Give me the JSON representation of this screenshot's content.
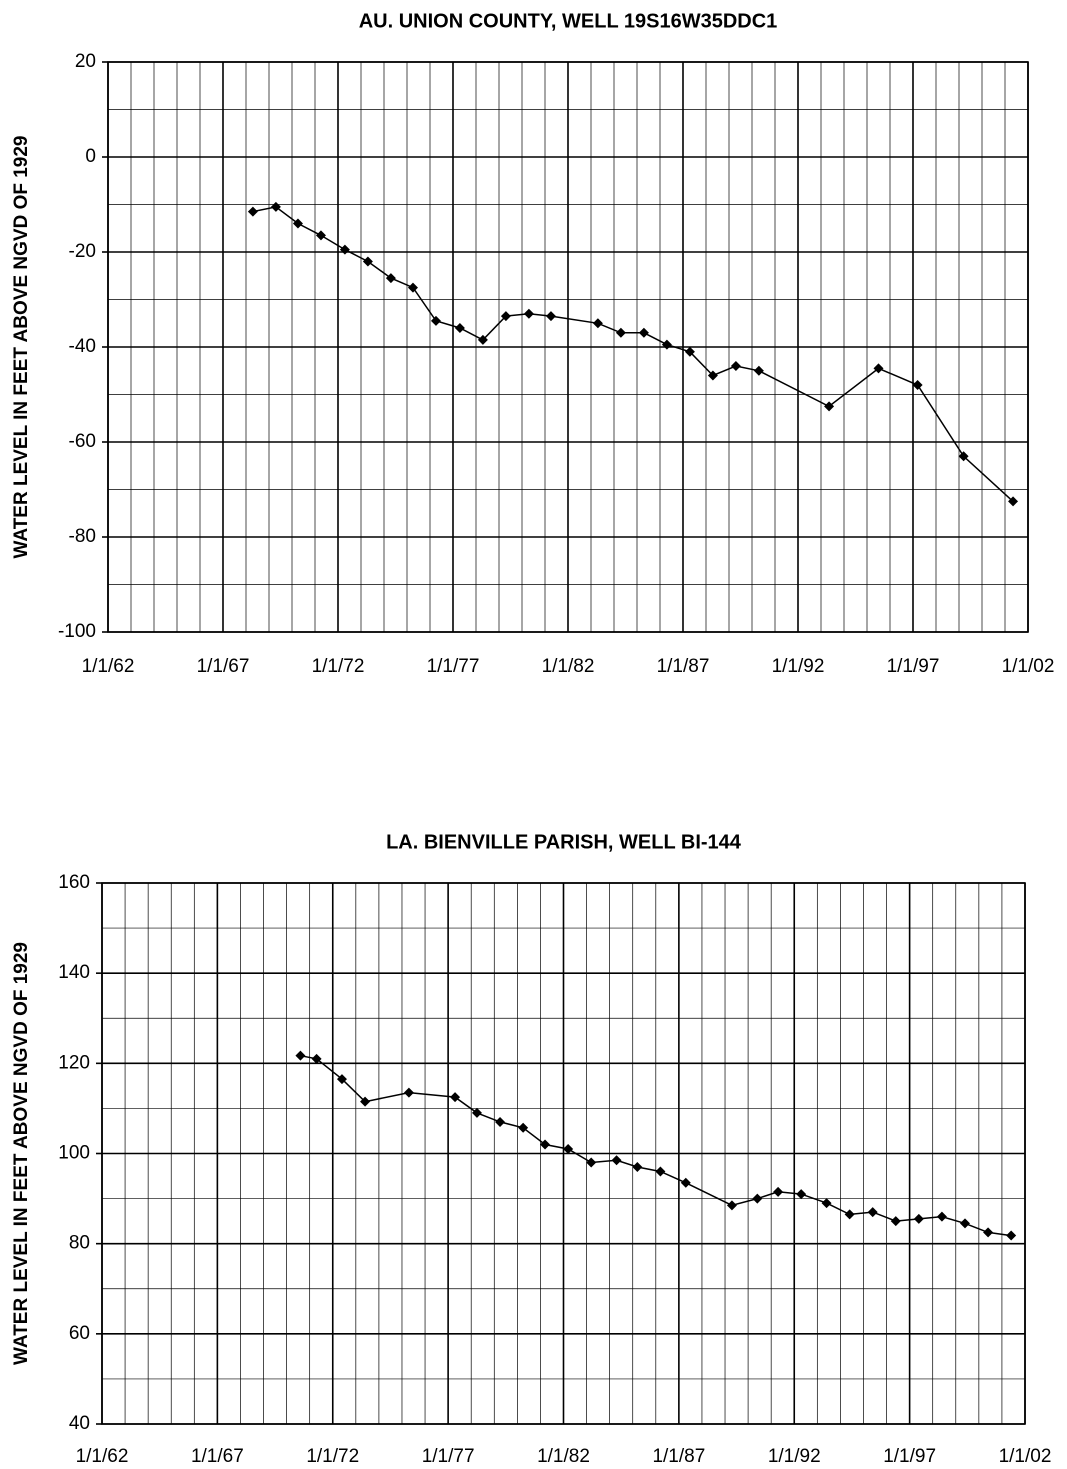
{
  "chart_data": [
    {
      "type": "line",
      "title": "AU. UNION COUNTY, WELL 19S16W35DDC1",
      "y_label": "WATER LEVEL  IN  FEET ABOVE NGVD OF 1929",
      "color": "#000000",
      "marker": "diamond",
      "grid": true,
      "minor_grid": true,
      "x": [
        1968.3,
        1969.3,
        1970.26,
        1971.26,
        1972.3,
        1973.3,
        1974.3,
        1975.26,
        1976.26,
        1977.3,
        1978.3,
        1979.3,
        1980.3,
        1981.26,
        1983.3,
        1984.3,
        1985.3,
        1986.3,
        1987.3,
        1988.3,
        1989.3,
        1990.3,
        1993.35,
        1995.5,
        1997.2,
        1999.2,
        2001.35
      ],
      "values": [
        -11.5,
        -10.5,
        -14,
        -16.5,
        -19.5,
        -22,
        -25.5,
        -27.5,
        -34.5,
        -36,
        -38.5,
        -33.5,
        -33,
        -33.5,
        -35,
        -37,
        -37,
        -39.5,
        -41,
        -46,
        -44,
        -45,
        -52.5,
        -44.5,
        -48,
        -63,
        -72.5
      ],
      "xlim": [
        1962,
        2002
      ],
      "xticks": [
        {
          "value": 1962,
          "label": "1/1/62"
        },
        {
          "value": 1967,
          "label": "1/1/67"
        },
        {
          "value": 1972,
          "label": "1/1/72"
        },
        {
          "value": 1977,
          "label": "1/1/77"
        },
        {
          "value": 1982,
          "label": "1/1/82"
        },
        {
          "value": 1987,
          "label": "1/1/87"
        },
        {
          "value": 1992,
          "label": "1/1/92"
        },
        {
          "value": 1997,
          "label": "1/1/97"
        },
        {
          "value": 2002,
          "label": "1/1/02"
        }
      ],
      "ylim": [
        -100,
        20
      ],
      "yticks": [
        -100,
        -80,
        -60,
        -40,
        -20,
        0,
        20
      ]
    },
    {
      "type": "line",
      "title": "LA. BIENVILLE PARISH, WELL BI-144",
      "y_label": "WATER LEVEL  IN  FEET ABOVE NGVD OF 1929",
      "color": "#000000",
      "marker": "diamond",
      "grid": true,
      "minor_grid": true,
      "x": [
        1970.6,
        1971.3,
        1972.4,
        1973.4,
        1975.3,
        1977.3,
        1978.25,
        1979.25,
        1980.25,
        1981.2,
        1982.2,
        1983.2,
        1984.3,
        1985.2,
        1986.2,
        1987.3,
        1989.3,
        1990.4,
        1991.3,
        1992.3,
        1993.4,
        1994.4,
        1995.4,
        1996.4,
        1997.4,
        1998.4,
        1999.4,
        2000.4,
        2001.4
      ],
      "values": [
        121.7,
        121,
        116.5,
        111.5,
        113.5,
        112.5,
        109,
        107,
        105.7,
        102,
        101,
        98,
        98.5,
        97,
        96,
        93.5,
        88.5,
        90,
        91.5,
        91,
        89,
        86.5,
        87,
        85,
        85.5,
        86,
        84.5,
        82.5,
        81.8
      ],
      "xlim": [
        1962,
        2002
      ],
      "xticks": [
        {
          "value": 1962,
          "label": "1/1/62"
        },
        {
          "value": 1967,
          "label": "1/1/67"
        },
        {
          "value": 1972,
          "label": "1/1/72"
        },
        {
          "value": 1977,
          "label": "1/1/77"
        },
        {
          "value": 1982,
          "label": "1/1/82"
        },
        {
          "value": 1987,
          "label": "1/1/87"
        },
        {
          "value": 1992,
          "label": "1/1/92"
        },
        {
          "value": 1997,
          "label": "1/1/97"
        },
        {
          "value": 2002,
          "label": "1/1/02"
        }
      ],
      "ylim": [
        40,
        160
      ],
      "yticks": [
        40,
        60,
        80,
        100,
        120,
        140,
        160
      ]
    }
  ]
}
